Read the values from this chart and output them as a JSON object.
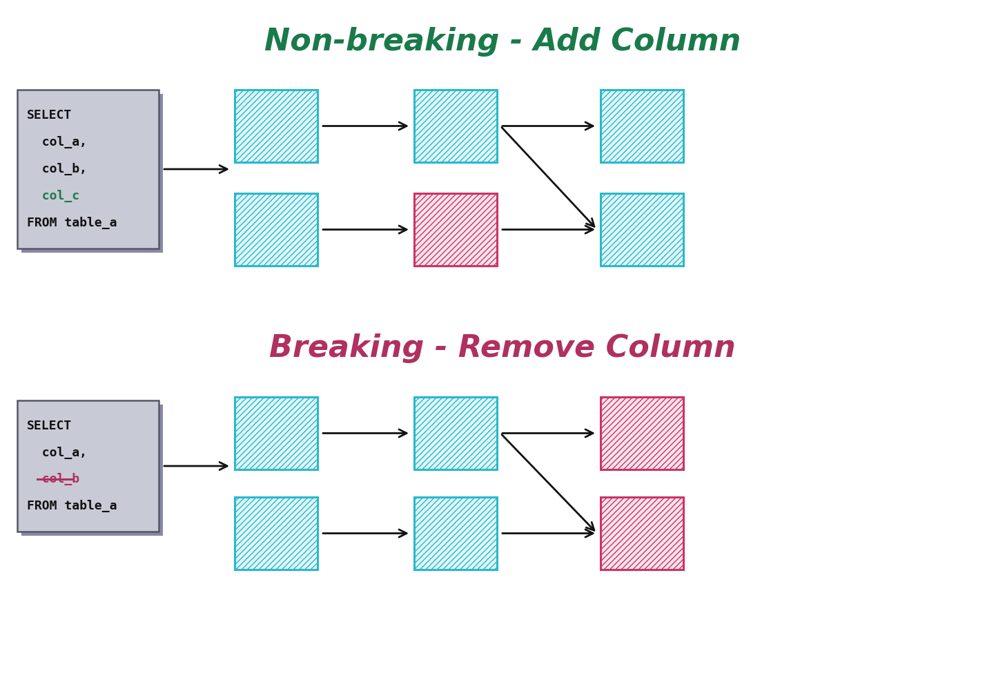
{
  "title_top": "Non-breaking - Add Column",
  "title_bottom": "Breaking - Remove Column",
  "title_top_color": "#1a7a4a",
  "title_bottom_color": "#b03060",
  "cyan_color": "#2ab8cc",
  "pink_color": "#cc3366",
  "box_bg_cyan": "#e0f7fa",
  "box_bg_pink": "#fce4ec",
  "code_box_bg": "#c8cad6",
  "code_box_shadow": "#8888aa",
  "arrow_color": "#111111",
  "fig_bg": "#ffffff",
  "top_code_lines": [
    "SELECT",
    "  col_a,",
    "  col_b,",
    "  col_c",
    "FROM table_a"
  ],
  "top_special_line": "  col_c",
  "top_special_color": "#1a7a4a",
  "bot_code_lines": [
    "SELECT",
    "  col_a,",
    "  col_b",
    "FROM table_a"
  ],
  "bot_special_line": "  col_b",
  "bot_special_color": "#b03060"
}
